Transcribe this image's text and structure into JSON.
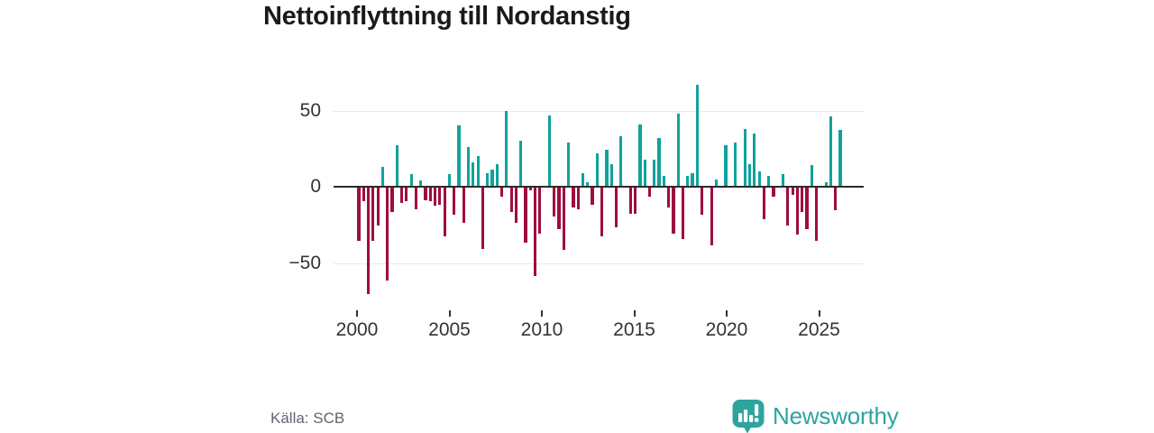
{
  "title": "Nettoinflyttning till Nordanstig",
  "source": "Källa: SCB",
  "brand": {
    "name": "Newsworthy"
  },
  "colors": {
    "positive": "#0fa39c",
    "negative": "#9e0d3f",
    "logo": "#2da49e",
    "axis_text": "#333333",
    "zero_line": "#2b2b2b",
    "gridline": "#e8e8e8",
    "title_text": "#1a1a1a",
    "source_text": "#606570"
  },
  "chart_data": {
    "type": "bar",
    "title": "Nettoinflyttning till Nordanstig",
    "xlabel": "",
    "ylabel": "",
    "frequency": "quarterly",
    "start_period": "2000Q1",
    "end_period": "2025Q2",
    "x_tick_years": [
      2000,
      2005,
      2010,
      2015,
      2020,
      2025
    ],
    "x_tick_labels": [
      "2000",
      "2005",
      "2010",
      "2015",
      "2020",
      "2025"
    ],
    "y_ticks": [
      50,
      0,
      -50
    ],
    "y_tick_labels": [
      "50",
      "0",
      "−50"
    ],
    "ylim": [
      -80,
      80
    ],
    "grid": "horizontal-at-±50",
    "legend": "none",
    "series_positive_color": "#0fa39c",
    "series_negative_color": "#9e0d3f",
    "values": [
      -35,
      -9,
      -70,
      -35,
      -25,
      13,
      -61,
      -16,
      27,
      -10,
      -9,
      8,
      -14,
      4,
      -8,
      -9,
      -12,
      -11,
      -32,
      8,
      -18,
      40,
      -23,
      26,
      16,
      20,
      -40,
      9,
      11,
      15,
      -6,
      50,
      -16,
      -23,
      30,
      -36,
      -2,
      -58,
      -30,
      0,
      47,
      -19,
      -27,
      -41,
      29,
      -13,
      -14,
      9,
      3,
      -11,
      22,
      -32,
      24,
      15,
      -26,
      33,
      0,
      -17,
      -17,
      41,
      18,
      -6,
      18,
      32,
      7,
      -13,
      -30,
      48,
      -34,
      7,
      9,
      67,
      -18,
      0,
      -38,
      5,
      0,
      27,
      0,
      29,
      0,
      38,
      15,
      35,
      10,
      -21,
      7,
      -6,
      0,
      8,
      -25,
      -5,
      -31,
      -16,
      -27,
      14,
      -35,
      0,
      3,
      46,
      -15,
      37
    ]
  }
}
